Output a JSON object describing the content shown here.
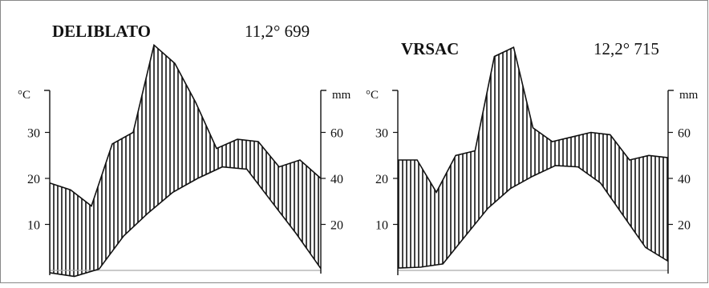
{
  "chart_data": [
    {
      "type": "area",
      "title": "DELIBLATO",
      "subtitle": "11,2° 699",
      "left_axis": {
        "unit": "°C",
        "ticks": [
          10,
          20,
          30
        ],
        "range": [
          0,
          50
        ]
      },
      "right_axis": {
        "unit": "mm",
        "ticks": [
          20,
          40,
          60
        ],
        "range": [
          0,
          100
        ]
      },
      "series": [
        {
          "values": [
            -0.5,
            -1.3,
            0.3,
            7.5,
            12.5,
            17.0,
            20.0,
            22.5,
            22.0,
            15.0,
            8.0,
            0.4
          ]
        },
        {
          "values": [
            38,
            35,
            28,
            55,
            60,
            98,
            90,
            73,
            53,
            57,
            56,
            45,
            48,
            40
          ]
        }
      ],
      "fill": "vertical-hatch"
    },
    {
      "type": "area",
      "title": "VRSAC",
      "subtitle": "12,2° 715",
      "left_axis": {
        "unit": "°C",
        "ticks": [
          10,
          20,
          30
        ],
        "range": [
          0,
          50
        ]
      },
      "right_axis": {
        "unit": "mm",
        "ticks": [
          20,
          40,
          60
        ],
        "range": [
          0,
          100
        ]
      },
      "series": [
        {
          "values": [
            0.5,
            0.7,
            1.4,
            7.5,
            13.5,
            17.8,
            20.5,
            22.8,
            22.5,
            19.0,
            12.0,
            5.0,
            2.0
          ]
        },
        {
          "values": [
            48,
            48,
            34,
            50,
            52,
            93,
            97,
            62,
            56,
            58,
            60,
            59,
            48,
            50,
            49
          ]
        }
      ],
      "fill": "vertical-hatch"
    }
  ]
}
